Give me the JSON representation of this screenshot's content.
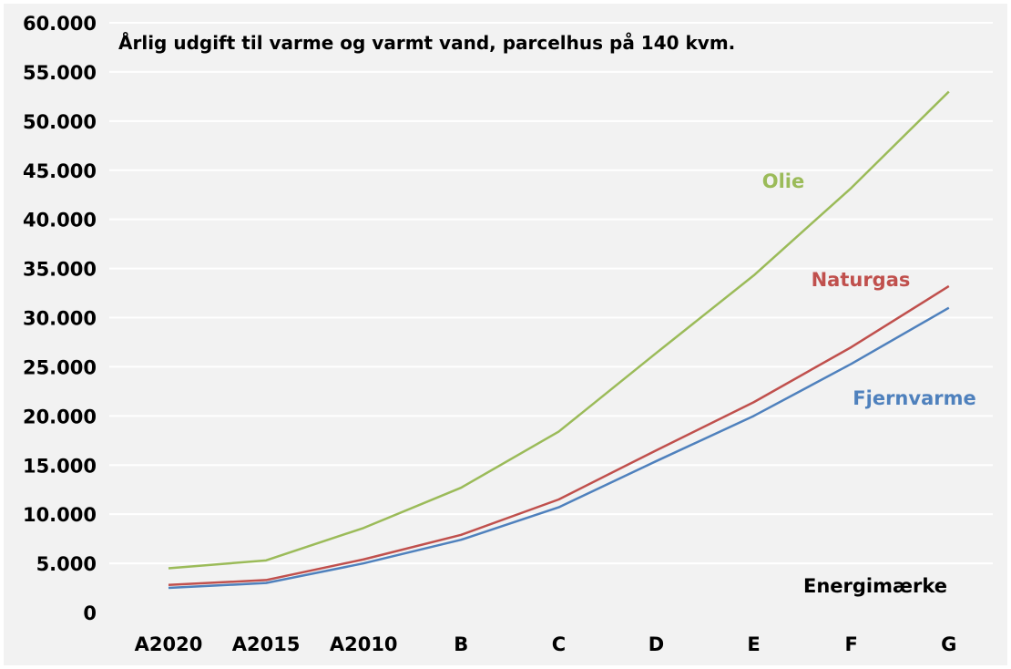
{
  "chart_data": {
    "type": "line",
    "title": "Årlig udgift til varme og varmt vand, parcelhus på 140 kvm.",
    "xlabel": "Energimærke",
    "ylabel": "",
    "categories": [
      "A2020",
      "A2015",
      "A2010",
      "B",
      "C",
      "D",
      "E",
      "F",
      "G"
    ],
    "y_ticks": [
      "0",
      "5.000",
      "10.000",
      "15.000",
      "20.000",
      "25.000",
      "30.000",
      "35.000",
      "40.000",
      "45.000",
      "50.000",
      "55.000",
      "60.000"
    ],
    "ylim": [
      0,
      60000
    ],
    "grid": true,
    "legend": "inline labels",
    "background": "#f2f2f2",
    "gridline_color": "#ffffff",
    "series": [
      {
        "name": "Olie",
        "color": "#9bbb59",
        "values": [
          4500,
          5300,
          8600,
          12700,
          18400,
          26400,
          34300,
          43200,
          53000
        ]
      },
      {
        "name": "Naturgas",
        "color": "#c0504d",
        "values": [
          2800,
          3300,
          5400,
          7900,
          11500,
          16500,
          21400,
          27000,
          33200
        ]
      },
      {
        "name": "Fjernvarme",
        "color": "#4f81bd",
        "values": [
          2500,
          3000,
          5000,
          7400,
          10700,
          15400,
          20000,
          25300,
          31000
        ]
      }
    ]
  }
}
